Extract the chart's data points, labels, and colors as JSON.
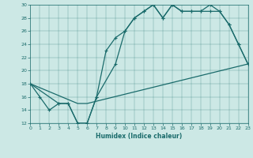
{
  "xlabel": "Humidex (Indice chaleur)",
  "xlim": [
    0,
    23
  ],
  "ylim": [
    12,
    30
  ],
  "yticks": [
    12,
    14,
    16,
    18,
    20,
    22,
    24,
    26,
    28,
    30
  ],
  "xticks": [
    0,
    1,
    2,
    3,
    4,
    5,
    6,
    7,
    8,
    9,
    10,
    11,
    12,
    13,
    14,
    15,
    16,
    17,
    18,
    19,
    20,
    21,
    22,
    23
  ],
  "bg_color": "#cce8e5",
  "line_color": "#1a6b6b",
  "line1_x": [
    0,
    1,
    2,
    3,
    4,
    5,
    6,
    7,
    8,
    9,
    10,
    11,
    12,
    13,
    14,
    15,
    16,
    17,
    18,
    19,
    20,
    21,
    22,
    23
  ],
  "line1_y": [
    18,
    16,
    14,
    15,
    15,
    12,
    12,
    16,
    23,
    25,
    26,
    28,
    29,
    30,
    28,
    30,
    29,
    29,
    29,
    30,
    29,
    27,
    24,
    21
  ],
  "line2_x": [
    0,
    3,
    4,
    5,
    6,
    7,
    9,
    10,
    11,
    12,
    13,
    14,
    15,
    16,
    17,
    18,
    19,
    20,
    21,
    22,
    23
  ],
  "line2_y": [
    18,
    15,
    15,
    12,
    12,
    16,
    21,
    26,
    28,
    29,
    30,
    28,
    30,
    29,
    29,
    29,
    29,
    29,
    27,
    24,
    21
  ],
  "line3_x": [
    0,
    5,
    6,
    23
  ],
  "line3_y": [
    18,
    15,
    15,
    21
  ]
}
